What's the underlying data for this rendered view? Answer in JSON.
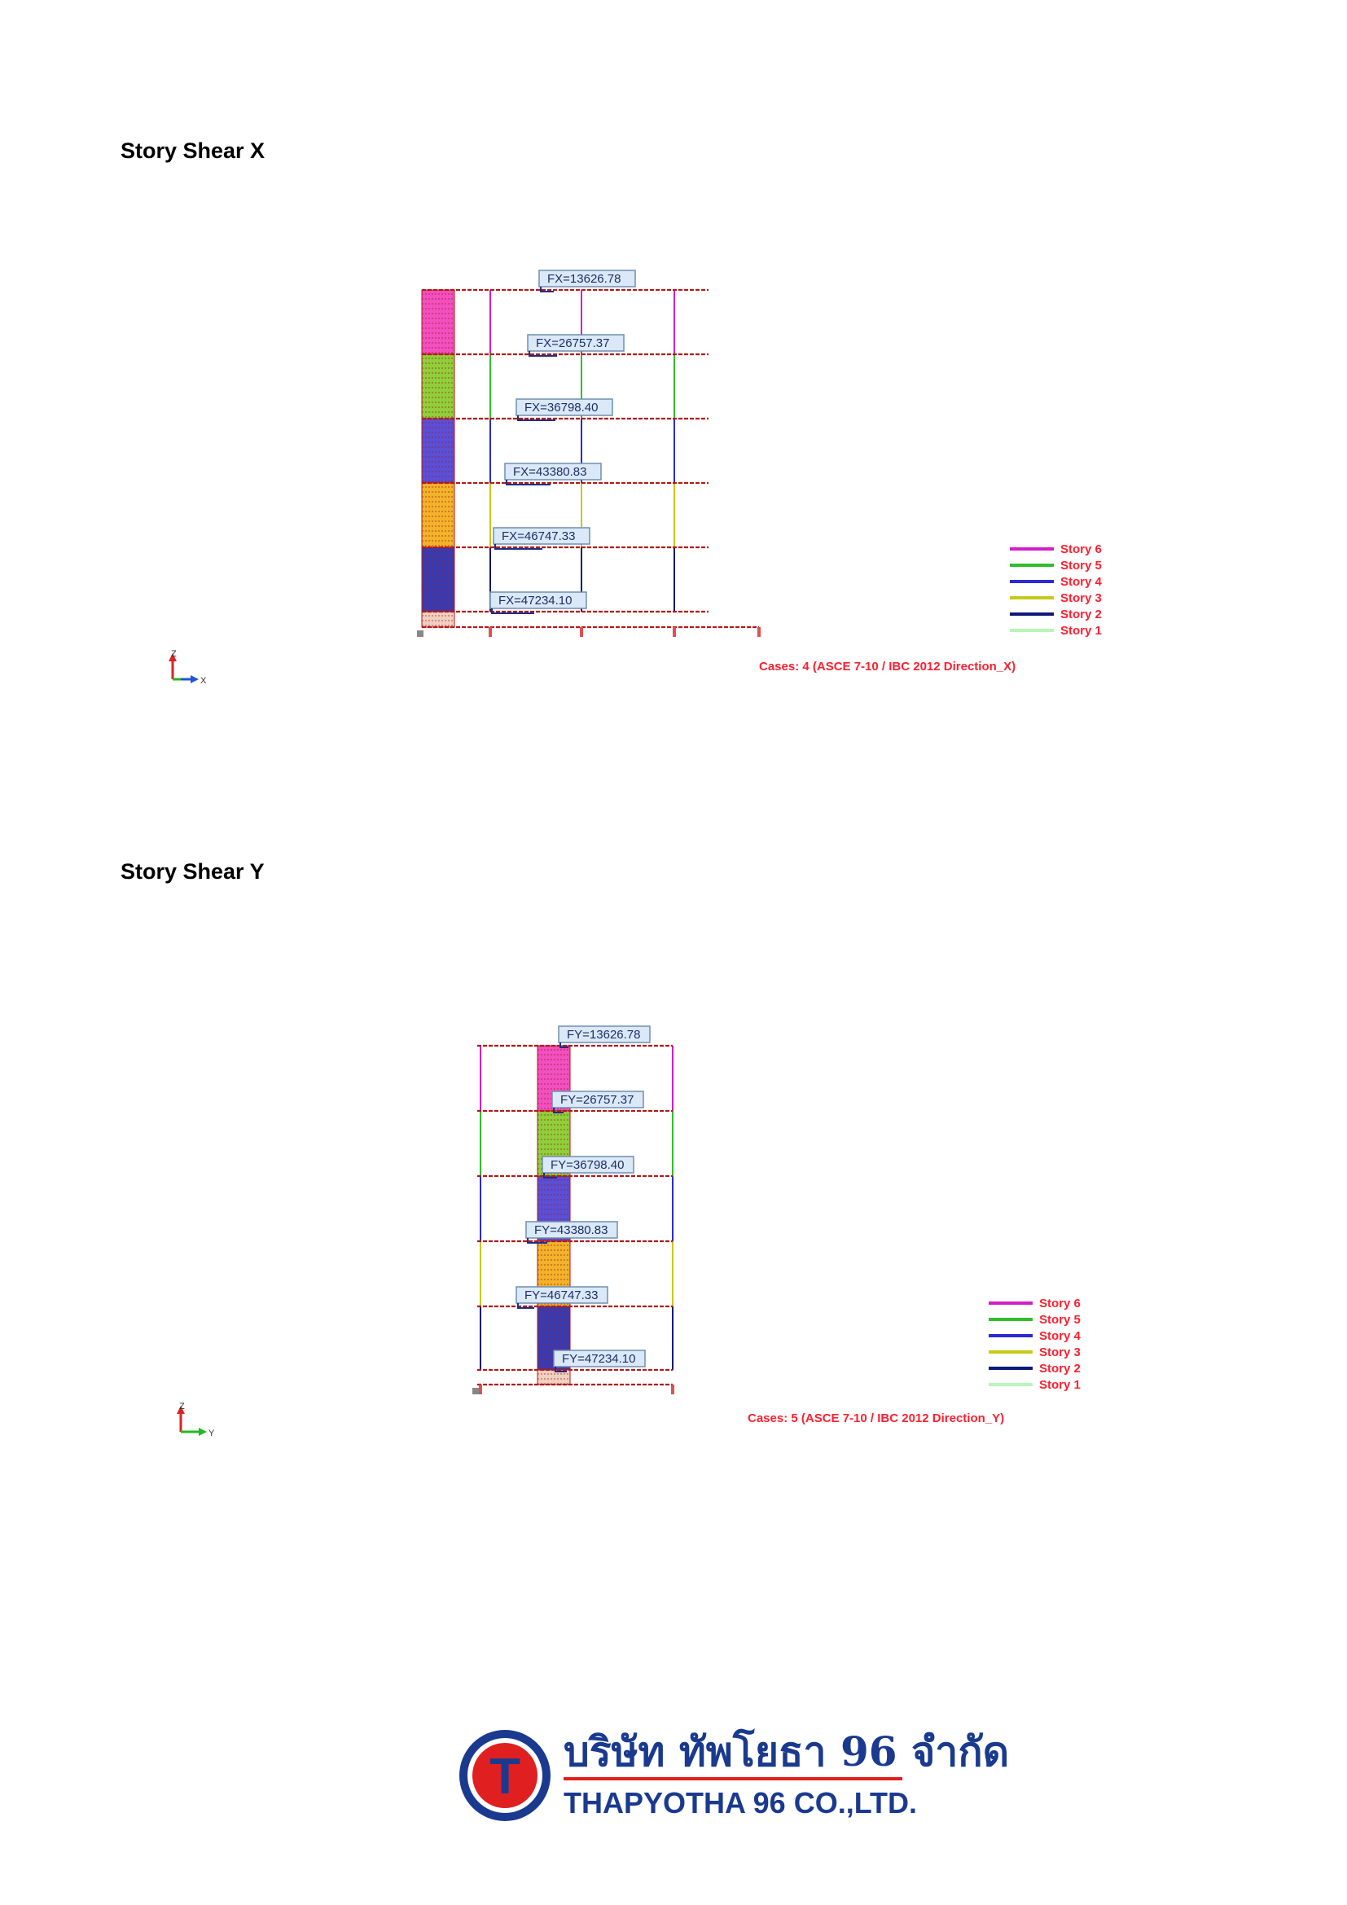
{
  "sections": [
    {
      "title": "Story Shear X",
      "case_caption": "Cases: 4 (ASCE 7-10 / IBC 2012 Direction_X)",
      "axis_labels": {
        "vertical": "Z",
        "horizontal": "X"
      },
      "forces": [
        {
          "story": "Story 6",
          "label": "FX=13626.78"
        },
        {
          "story": "Story 5",
          "label": "FX=26757.37"
        },
        {
          "story": "Story 4",
          "label": "FX=36798.40"
        },
        {
          "story": "Story 3",
          "label": "FX=43380.83"
        },
        {
          "story": "Story 2",
          "label": "FX=46747.33"
        },
        {
          "story": "Story 1",
          "label": "FX=47234.10"
        }
      ]
    },
    {
      "title": "Story Shear Y",
      "case_caption": "Cases: 5 (ASCE 7-10 / IBC 2012 Direction_Y)",
      "axis_labels": {
        "vertical": "Z",
        "horizontal": "Y"
      },
      "forces": [
        {
          "story": "Story 6",
          "label": "FY=13626.78"
        },
        {
          "story": "Story 5",
          "label": "FY=26757.37"
        },
        {
          "story": "Story 4",
          "label": "FY=36798.40"
        },
        {
          "story": "Story 3",
          "label": "FY=43380.83"
        },
        {
          "story": "Story 2",
          "label": "FY=46747.33"
        },
        {
          "story": "Story 1",
          "label": "FY=47234.10"
        }
      ]
    }
  ],
  "legend": [
    {
      "label": "Story 6",
      "color": "#d21fc8"
    },
    {
      "label": "Story 5",
      "color": "#2fbf2a"
    },
    {
      "label": "Story 4",
      "color": "#2a2ad6"
    },
    {
      "label": "Story 3",
      "color": "#c8c81a"
    },
    {
      "label": "Story 2",
      "color": "#0b1a7a"
    },
    {
      "label": "Story 1",
      "color": "#b8f5b8"
    }
  ],
  "colors": {
    "slab": "#b21a1a",
    "block_story6": "#f24fc0",
    "block_story5": "#8fcf3a",
    "block_story4": "#5a4fd6",
    "block_story3": "#f2b22a",
    "block_story2": "#3a3ab0",
    "block_story1": "#f0d0c0",
    "caption_red": "#ff1f2f",
    "logo_blue": "#1a3a8f",
    "logo_red": "#e02020"
  },
  "logo": {
    "emblem_letter": "T",
    "thai_name": "บริษัท ทัพโยธา 96 จำกัด",
    "english_name": "THAPYOTHA 96 CO.,LTD."
  }
}
